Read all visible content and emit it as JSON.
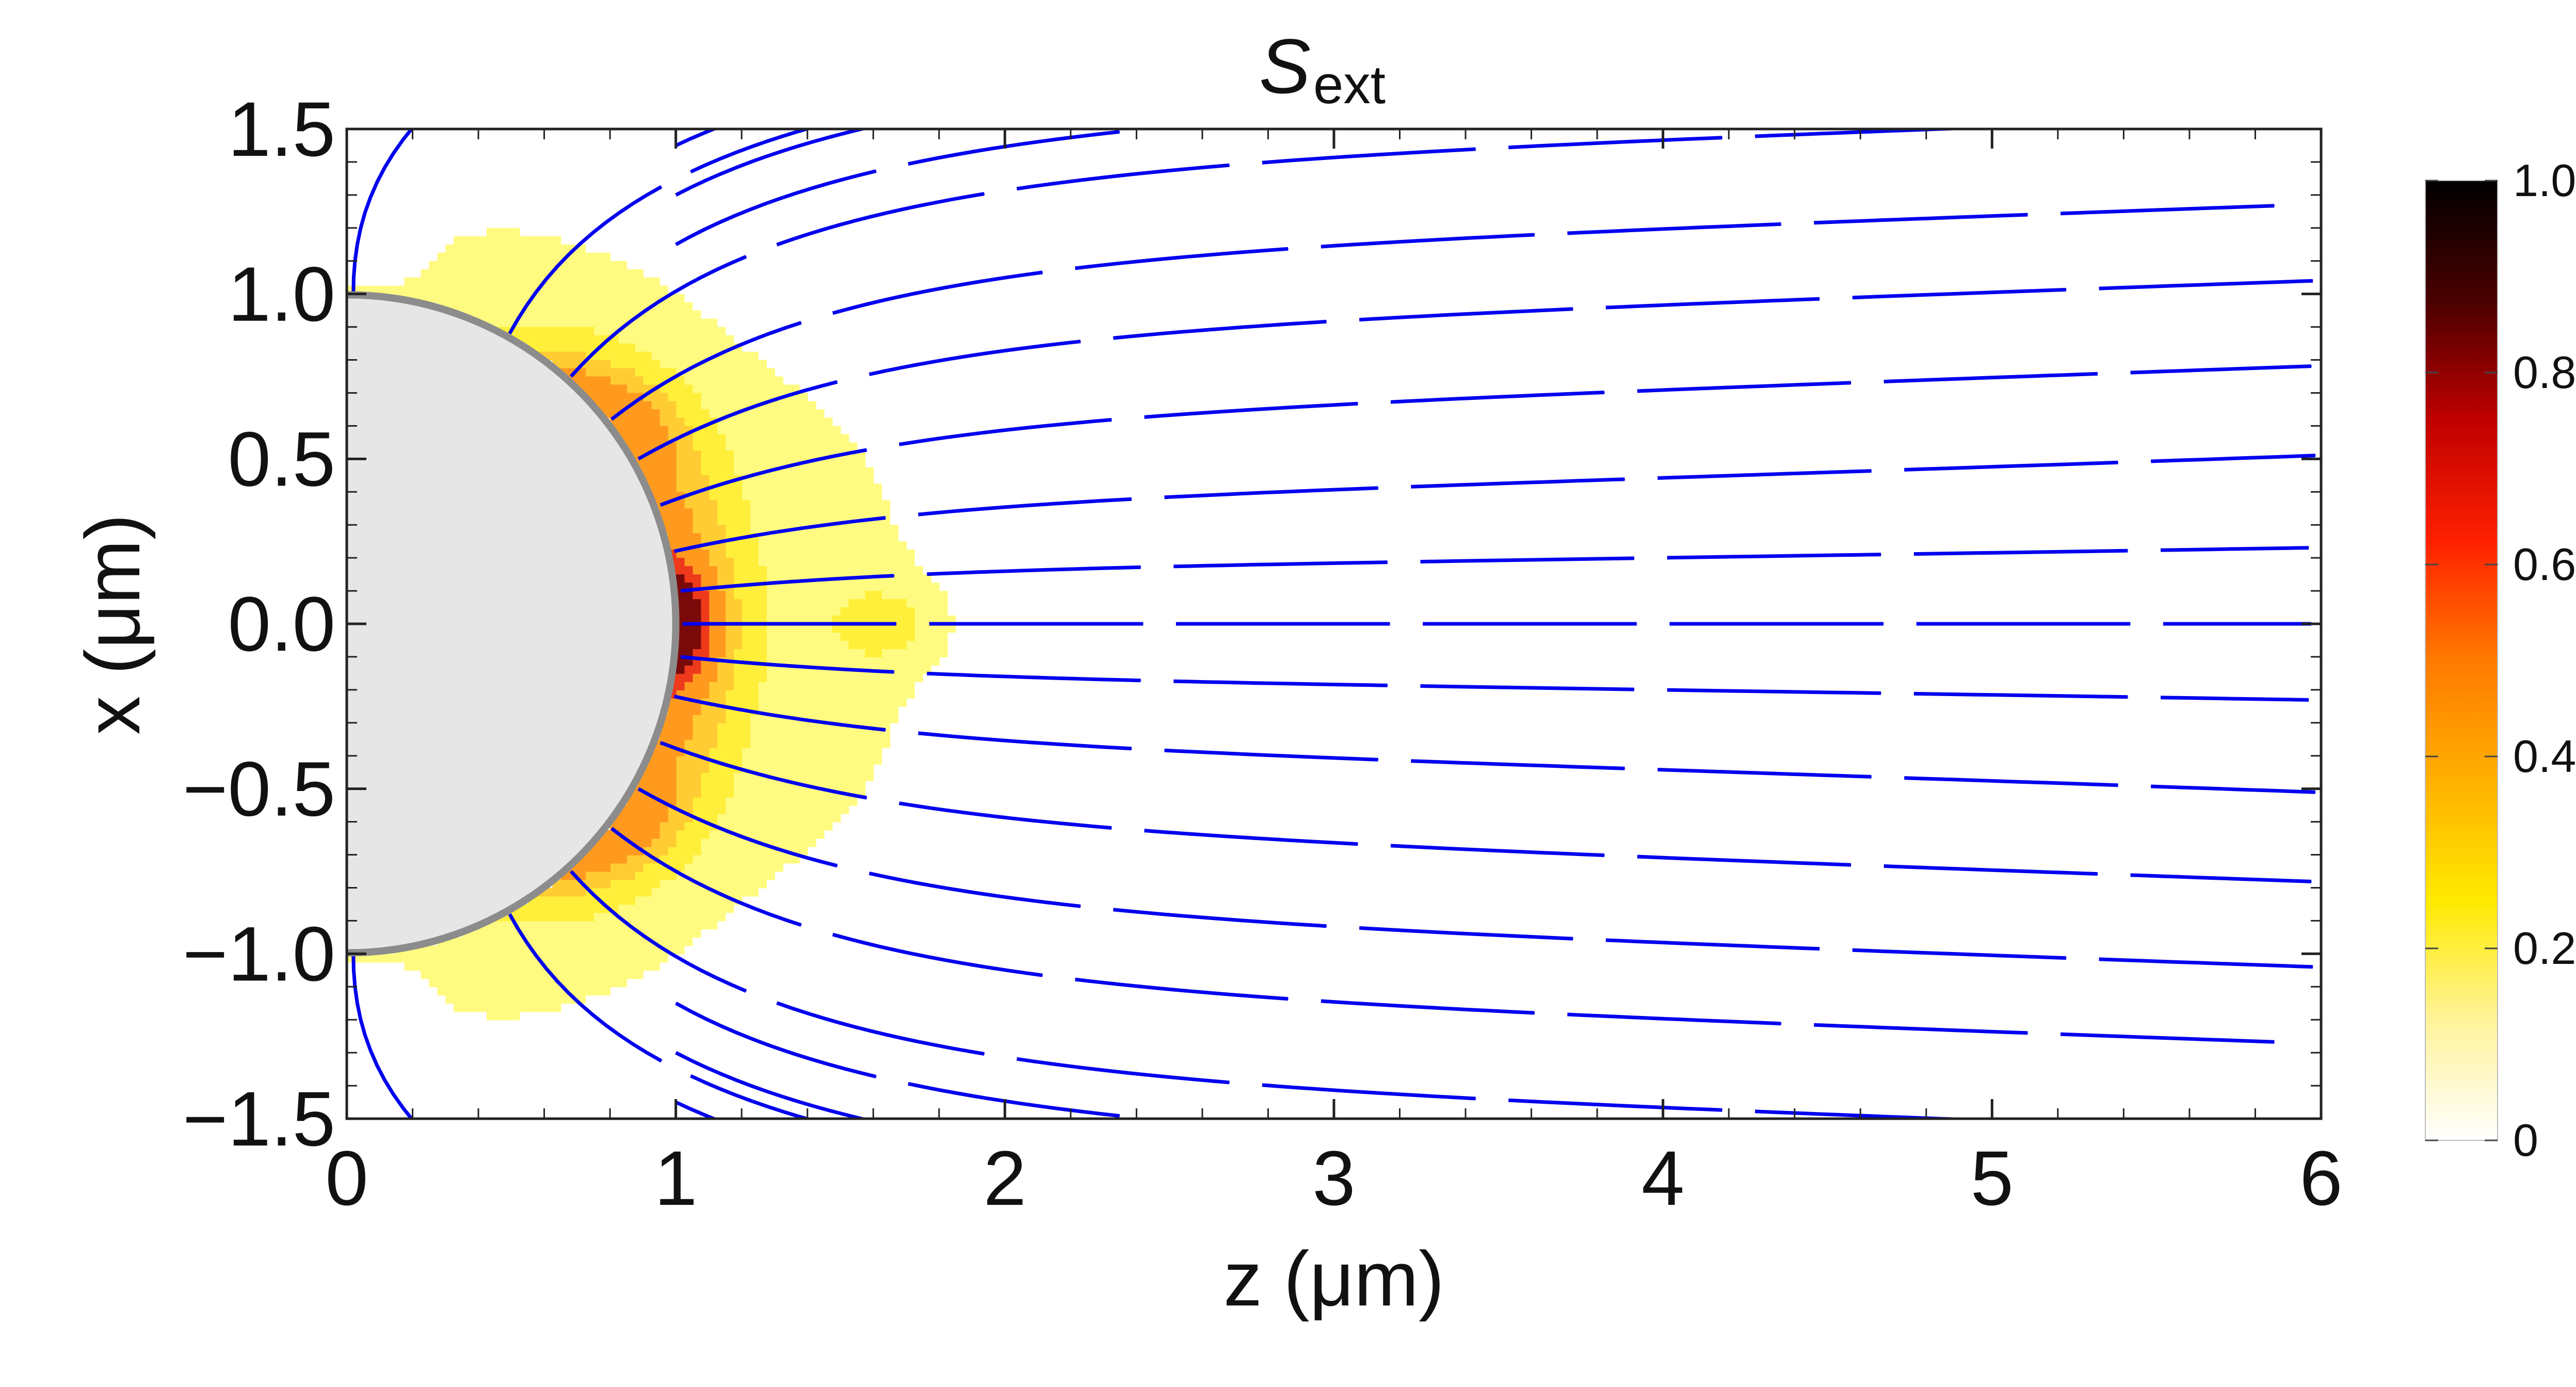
{
  "chart_data": {
    "type": "contour+streamlines",
    "title": "S",
    "title_subscript": "ext",
    "xlabel": "z (μm)",
    "ylabel": "x (μm)",
    "xlim": [
      0,
      6
    ],
    "ylim": [
      -1.5,
      1.5
    ],
    "x_ticks": [
      0,
      1,
      2,
      3,
      4,
      5,
      6
    ],
    "x_tick_labels": [
      "0",
      "1",
      "2",
      "3",
      "4",
      "5",
      "6"
    ],
    "y_ticks": [
      -1.5,
      -1.0,
      -0.5,
      0.0,
      0.5,
      1.0,
      1.5
    ],
    "y_tick_labels": [
      "−1.5",
      "−1.0",
      "−0.5",
      "0.0",
      "0.5",
      "1.0",
      "1.5"
    ],
    "sphere": {
      "center": [
        0,
        0
      ],
      "radius": 1.0,
      "fill": "#e6e6e6",
      "stroke": "#8c8c8c"
    },
    "colorbar": {
      "range": [
        0,
        1
      ],
      "ticks": [
        0,
        0.2,
        0.4,
        0.6,
        0.8,
        1.0
      ],
      "tick_labels": [
        "0",
        "0.2",
        "0.4",
        "0.6",
        "0.8",
        "1.0"
      ],
      "gradient": [
        "#ffffff",
        "#fff39a",
        "#ffea00",
        "#ffb000",
        "#ff7a00",
        "#ff2000",
        "#c00000",
        "#4a0000",
        "#000000"
      ]
    },
    "contour_levels": [
      {
        "level": 0.2,
        "color": "#fffb80"
      },
      {
        "level": 0.3,
        "color": "#ffef3a"
      },
      {
        "level": 0.4,
        "color": "#ffcc33"
      },
      {
        "level": 0.5,
        "color": "#ff9a1f"
      },
      {
        "level": 0.7,
        "color": "#ee3a1a"
      },
      {
        "level": 0.9,
        "color": "#7a0a0a"
      }
    ],
    "streamline_color": "#0000ee",
    "streamline_start_x": [
      1.45,
      1.3,
      1.15,
      1.0,
      0.88,
      0.75,
      0.62,
      0.5,
      0.36,
      0.22,
      0.1,
      0.0,
      -0.1,
      -0.22,
      -0.36,
      -0.5,
      -0.62,
      -0.75,
      -0.88,
      -1.0,
      -1.15,
      -1.3,
      -1.45
    ]
  }
}
